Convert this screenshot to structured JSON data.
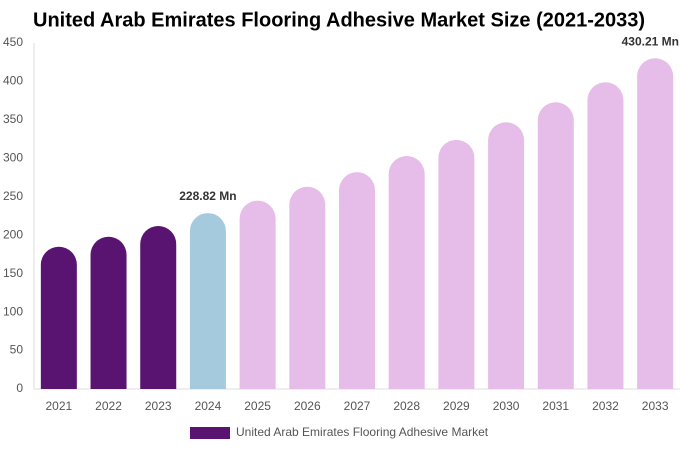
{
  "chart_data": {
    "type": "bar",
    "title": "United Arab Emirates Flooring Adhesive Market Size (2021-2033)",
    "categories": [
      "2021",
      "2022",
      "2023",
      "2024",
      "2025",
      "2026",
      "2027",
      "2028",
      "2029",
      "2030",
      "2031",
      "2032",
      "2033"
    ],
    "series": [
      {
        "name": "United Arab Emirates Flooring Adhesive Market",
        "color": "#581470",
        "colors": [
          "#581470",
          "#581470",
          "#581470",
          "#a5cade",
          "#e6bde8",
          "#e6bde8",
          "#e6bde8",
          "#e6bde8",
          "#e6bde8",
          "#e6bde8",
          "#e6bde8",
          "#e6bde8",
          "#e6bde8"
        ],
        "values": [
          185,
          198,
          212,
          228.82,
          245,
          263,
          282,
          303,
          324,
          347,
          373,
          399,
          430.21
        ],
        "value_labels": [
          null,
          null,
          null,
          "228.82 Mn",
          null,
          null,
          null,
          null,
          null,
          null,
          null,
          null,
          "430.21 Mn"
        ]
      }
    ],
    "ylim": [
      0,
      450
    ],
    "yticks": [
      0,
      50,
      100,
      150,
      200,
      250,
      300,
      350,
      400,
      450
    ],
    "grid": false
  }
}
